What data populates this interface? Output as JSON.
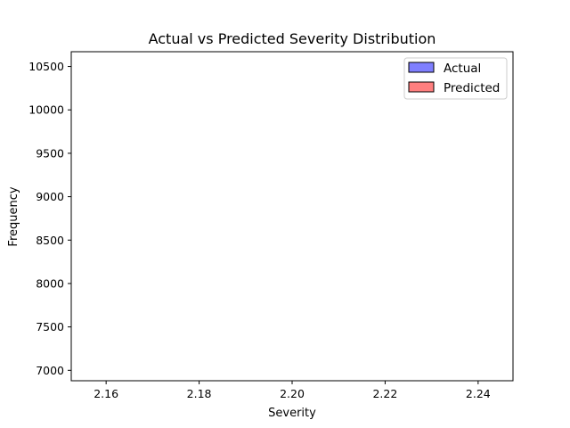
{
  "chart_data": {
    "type": "bar",
    "title": "Actual vs Predicted Severity Distribution",
    "xlabel": "Severity",
    "ylabel": "Frequency",
    "xlim": [
      2.1525,
      2.2475
    ],
    "ylim": [
      6880,
      10670
    ],
    "xticks": [
      "2.16",
      "2.18",
      "2.20",
      "2.22",
      "2.24"
    ],
    "xtick_values": [
      2.16,
      2.18,
      2.2,
      2.22,
      2.24
    ],
    "yticks": [
      "7000",
      "7500",
      "8000",
      "8500",
      "9000",
      "9500",
      "10000",
      "10500"
    ],
    "ytick_values": [
      7000,
      7500,
      8000,
      8500,
      9000,
      9500,
      10000,
      10500
    ],
    "grid": false,
    "legend_position": "top-right",
    "series": [
      {
        "name": "Actual",
        "color": "#7f7fff",
        "edge": "#000000",
        "values": []
      },
      {
        "name": "Predicted",
        "color": "#ff7f7f",
        "edge": "#000000",
        "values": []
      }
    ]
  }
}
